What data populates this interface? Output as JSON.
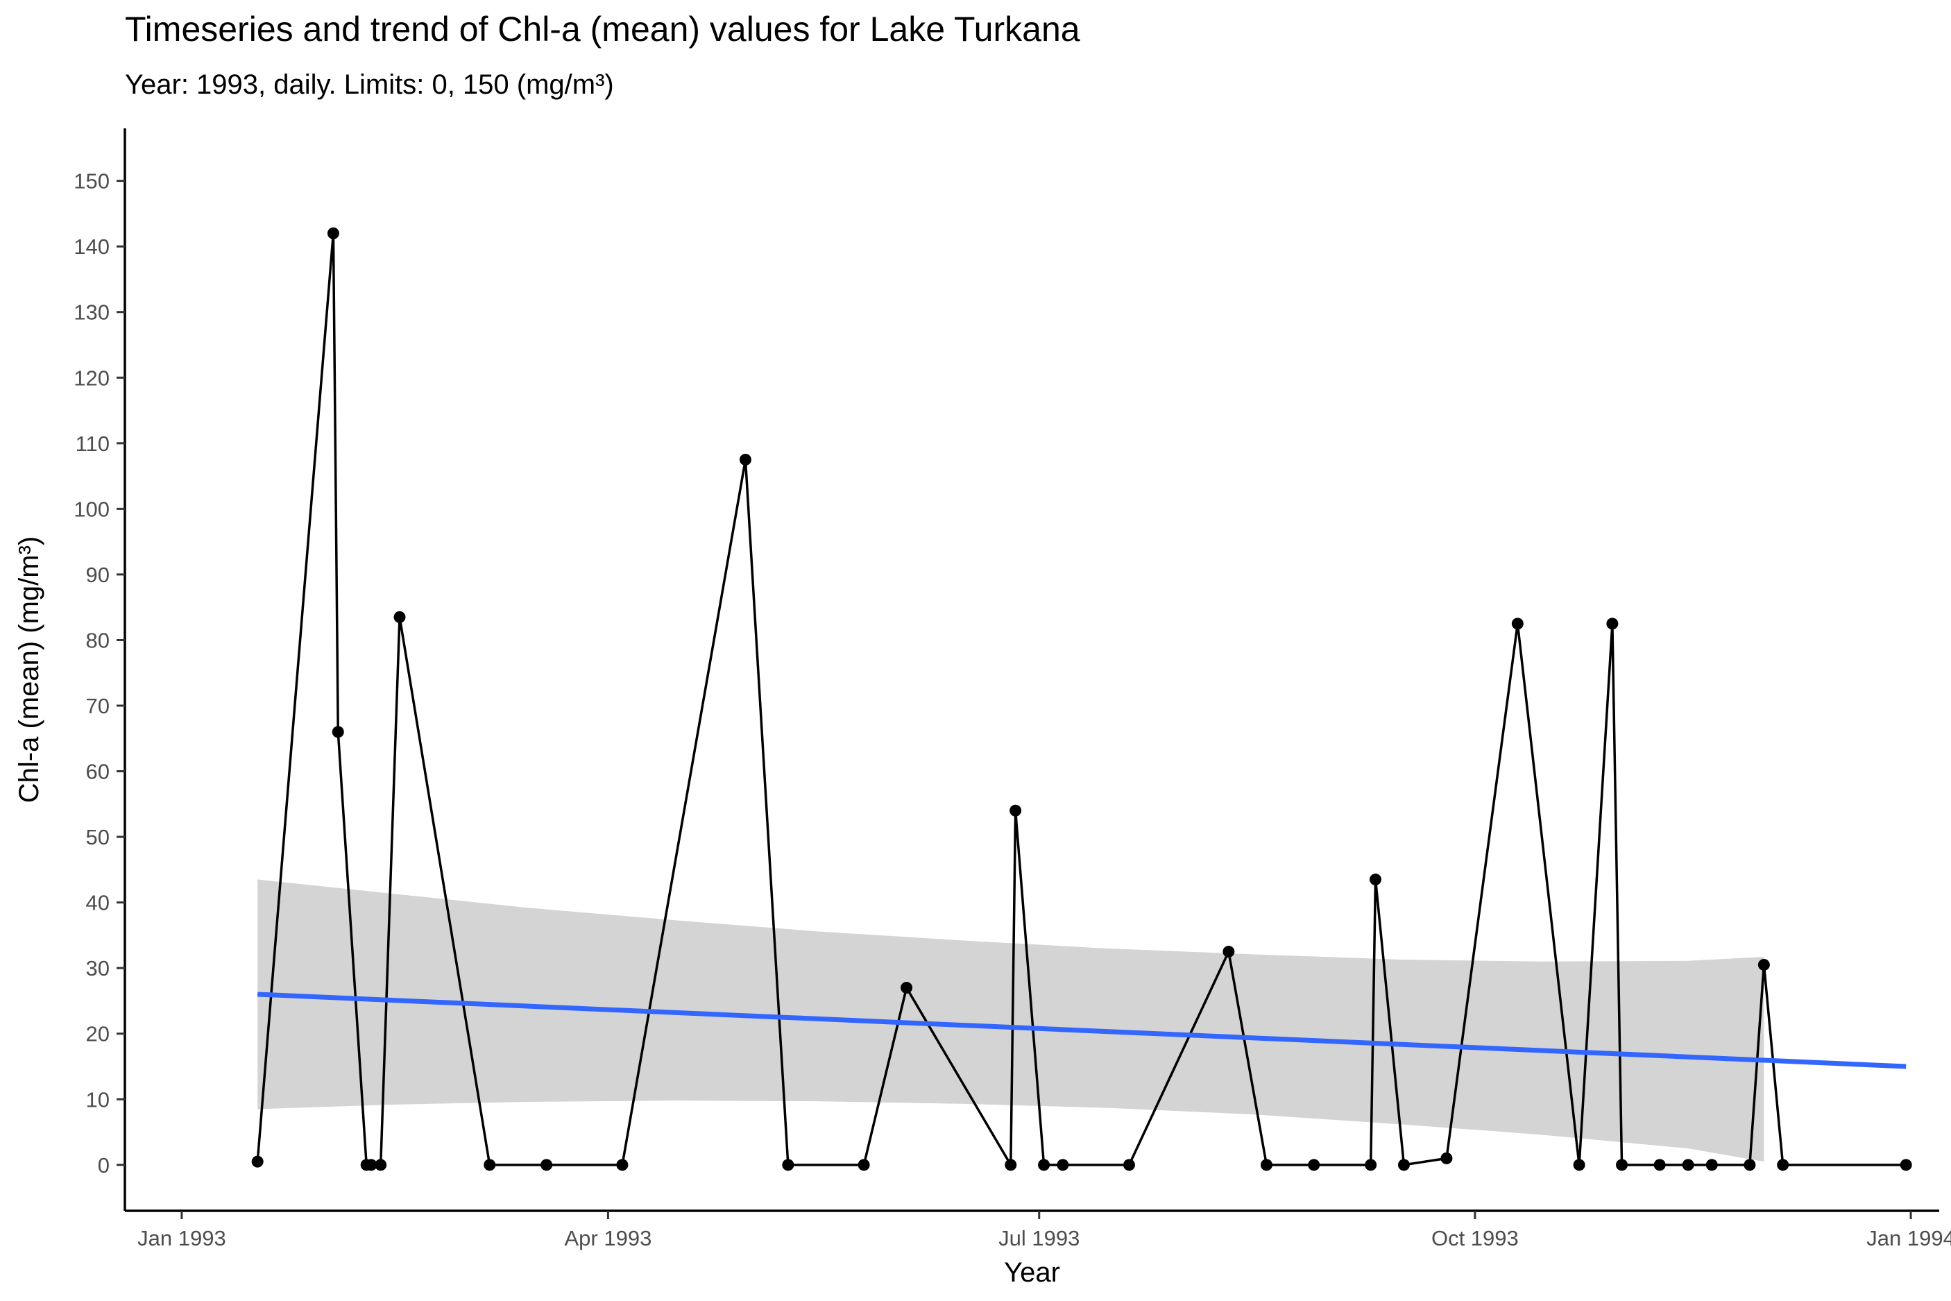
{
  "chart_data": {
    "type": "line",
    "title": "Timeseries and trend of Chl-a (mean) values for Lake Turkana",
    "subtitle": "Year: 1993, daily. Limits: 0, 150 (mg/m³)",
    "xlabel": "Year",
    "ylabel": "Chl-a (mean) (mg/m³)",
    "ylim": [
      -7,
      158
    ],
    "xlim": [
      "1992-12-20",
      "1994-01-07"
    ],
    "x_ticks": [
      {
        "date": "1993-01-01",
        "label": "Jan 1993"
      },
      {
        "date": "1993-04-01",
        "label": "Apr 1993"
      },
      {
        "date": "1993-07-01",
        "label": "Jul 1993"
      },
      {
        "date": "1993-10-01",
        "label": "Oct 1993"
      },
      {
        "date": "1994-01-01",
        "label": "Jan 1994"
      }
    ],
    "y_ticks": [
      0,
      10,
      20,
      30,
      40,
      50,
      60,
      70,
      80,
      90,
      100,
      110,
      120,
      130,
      140,
      150
    ],
    "grid": false,
    "series": [
      {
        "kind": "observations",
        "color": "#000000",
        "x": [
          "1993-01-17",
          "1993-02-02",
          "1993-02-03",
          "1993-02-09",
          "1993-02-10",
          "1993-02-12",
          "1993-02-16",
          "1993-03-07",
          "1993-03-19",
          "1993-04-04",
          "1993-04-30",
          "1993-05-09",
          "1993-05-25",
          "1993-06-03",
          "1993-06-25",
          "1993-06-26",
          "1993-07-02",
          "1993-07-06",
          "1993-07-20",
          "1993-08-10",
          "1993-08-18",
          "1993-08-28",
          "1993-09-09",
          "1993-09-10",
          "1993-09-16",
          "1993-09-25",
          "1993-10-10",
          "1993-10-23",
          "1993-10-30",
          "1993-11-01",
          "1993-11-09",
          "1993-11-15",
          "1993-11-20",
          "1993-11-28",
          "1993-12-01",
          "1993-12-05",
          "1993-12-31"
        ],
        "y": [
          0.5,
          142,
          66,
          0,
          0,
          0,
          83.5,
          0,
          0,
          0,
          107.5,
          0,
          0,
          27,
          0,
          54,
          0,
          0,
          0,
          32.5,
          0,
          0,
          0,
          43.5,
          0,
          1,
          82.5,
          0,
          82.5,
          0,
          0,
          0,
          0,
          0,
          30.5,
          0,
          0
        ]
      },
      {
        "kind": "trend",
        "color": "#3366ff",
        "x": [
          "1993-01-17",
          "1993-12-31"
        ],
        "y": [
          26,
          15
        ]
      },
      {
        "kind": "confidence-band",
        "color": "#d4d4d4",
        "x": [
          "1993-01-17",
          "1993-02-15",
          "1993-03-15",
          "1993-04-15",
          "1993-05-15",
          "1993-06-15",
          "1993-07-15",
          "1993-08-15",
          "1993-09-15",
          "1993-10-15",
          "1993-11-15",
          "1993-12-01"
        ],
        "upper": [
          43.5,
          41.3,
          39.2,
          37.3,
          35.6,
          34.2,
          33.0,
          32.1,
          31.3,
          31.0,
          31.1,
          31.7
        ],
        "lower": [
          8.5,
          9.2,
          9.6,
          9.8,
          9.7,
          9.3,
          8.7,
          7.7,
          6.2,
          4.6,
          2.5,
          0.5
        ]
      }
    ]
  }
}
